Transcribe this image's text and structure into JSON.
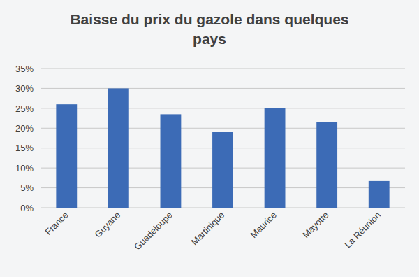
{
  "chart_data": {
    "type": "bar",
    "title": "Baisse du prix du gazole dans quelques pays",
    "categories": [
      "France",
      "Guyane",
      "Guadeloupe",
      "Martinique",
      "Maurice",
      "Mayotte",
      "La Réunion"
    ],
    "values": [
      26,
      30,
      23.5,
      19,
      25,
      21.5,
      6.7
    ],
    "color": "#3c6bb6",
    "ylim": [
      0,
      35
    ],
    "yticks": [
      {
        "value": 0,
        "label": "0%"
      },
      {
        "value": 5,
        "label": "5%"
      },
      {
        "value": 10,
        "label": "10%"
      },
      {
        "value": 15,
        "label": "15%"
      },
      {
        "value": 20,
        "label": "20%"
      },
      {
        "value": 25,
        "label": "25%"
      },
      {
        "value": 30,
        "label": "30%"
      },
      {
        "value": 35,
        "label": "35%"
      }
    ],
    "grid": true
  }
}
